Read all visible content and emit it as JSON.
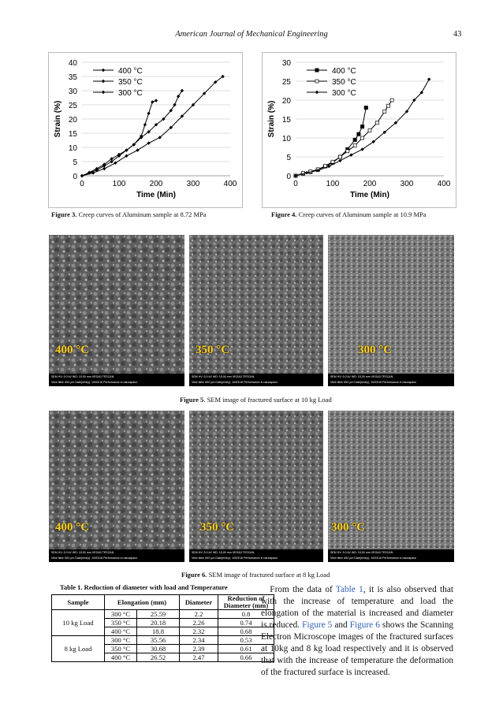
{
  "header": {
    "journal": "American Journal of Mechanical Engineering",
    "page_number": "43"
  },
  "figure3": {
    "caption_label": "Figure 3.",
    "caption_text": " Creep curves of Aluminum sample at 8.72 MPa",
    "chart_data": {
      "type": "line",
      "xlabel": "Time (Min)",
      "ylabel": "Strain (%)",
      "xlim": [
        0,
        400
      ],
      "ylim": [
        0,
        40
      ],
      "xticks": [
        0,
        100,
        200,
        300,
        400
      ],
      "yticks": [
        0,
        5,
        10,
        15,
        20,
        25,
        30,
        35,
        40
      ],
      "legend": "top-left",
      "series": [
        {
          "name": "400 °C",
          "x": [
            0,
            20,
            40,
            60,
            80,
            100,
            120,
            140,
            160,
            170,
            180,
            190,
            200
          ],
          "y": [
            0,
            1.2,
            2.5,
            4,
            6,
            7.5,
            9,
            11,
            14,
            18,
            22,
            26,
            26.5
          ]
        },
        {
          "name": "350 °C",
          "x": [
            0,
            20,
            40,
            60,
            80,
            100,
            120,
            140,
            160,
            180,
            200,
            220,
            240,
            250,
            260,
            270
          ],
          "y": [
            0,
            1,
            2,
            3.5,
            5,
            7,
            9,
            11,
            13.5,
            15.5,
            18,
            20,
            23,
            25,
            28,
            30
          ]
        },
        {
          "name": "300 °C",
          "x": [
            0,
            30,
            60,
            90,
            120,
            150,
            180,
            210,
            240,
            270,
            300,
            330,
            360,
            380
          ],
          "y": [
            0,
            1,
            2.5,
            4.5,
            7,
            9,
            11.5,
            13.5,
            17,
            21,
            25,
            29,
            33,
            35
          ]
        }
      ]
    }
  },
  "figure4": {
    "caption_label": "Figure 4.",
    "caption_text": " Creep curves of Aluminum sample at 10.9 MPa",
    "chart_data": {
      "type": "line",
      "xlabel": "Time (Min)",
      "ylabel": "Strain (%)",
      "xlim": [
        0,
        400
      ],
      "ylim": [
        0,
        30
      ],
      "xticks": [
        0,
        100,
        200,
        300,
        400
      ],
      "yticks": [
        0,
        5,
        10,
        15,
        20,
        25,
        30
      ],
      "legend": "top-left",
      "series": [
        {
          "name": "400 °C",
          "x": [
            0,
            20,
            40,
            60,
            80,
            100,
            120,
            140,
            160,
            170,
            180,
            190
          ],
          "y": [
            0,
            0.6,
            1.0,
            1.6,
            2.5,
            3.5,
            5,
            7,
            9.5,
            11,
            13,
            18
          ]
        },
        {
          "name": "350 °C",
          "x": [
            0,
            20,
            40,
            60,
            80,
            100,
            120,
            140,
            160,
            180,
            200,
            220,
            240,
            250,
            260
          ],
          "y": [
            0,
            0.7,
            1.1,
            1.7,
            2.6,
            3.7,
            5,
            6.5,
            8,
            10,
            12,
            14,
            17,
            18.5,
            20
          ]
        },
        {
          "name": "300 °C",
          "x": [
            0,
            30,
            60,
            90,
            120,
            150,
            180,
            210,
            240,
            270,
            300,
            320,
            340,
            360
          ],
          "y": [
            0,
            0.8,
            1.4,
            2.5,
            4,
            5.5,
            7,
            9,
            11.5,
            14,
            17,
            20,
            22,
            25.5
          ]
        }
      ]
    }
  },
  "figure5": {
    "caption_label": "Figure 5",
    "caption_text": ". SEM image of fractured surface at 10 kg Load",
    "images": [
      {
        "label": "400 °C"
      },
      {
        "label": "350 °C"
      },
      {
        "label": "300 °C"
      }
    ]
  },
  "figure6": {
    "caption_label": "Figure 6.",
    "caption_text": " SEM image of fractured surface at 8 kg Load",
    "images": [
      {
        "label": "400 °C"
      },
      {
        "label": "350 °C"
      },
      {
        "label": "300 °C"
      }
    ]
  },
  "sem_meta": {
    "row1": "SEM HV: 5.0 kV    WD: 15.00 mm                  VEGA3 TESCAN",
    "row2": "SEM MAG: 200 x    Det: SE    200 µm",
    "row3": "View field: 692 µm   Date(m/d/y): 10/03/16      Performance in nanospace"
  },
  "table1": {
    "caption": "Table 1. Reduction of diameter with load and Temperature",
    "headers": [
      "Sample",
      "Elongation (mm)",
      "Diameter",
      "Reduction of Diameter (mm)"
    ],
    "groups": [
      {
        "sample": "10 kg Load",
        "rows": [
          {
            "temp": "300 °C",
            "elongation": "25.59",
            "diameter": "2.2",
            "reduction": "0.8"
          },
          {
            "temp": "350 °C",
            "elongation": "20.18",
            "diameter": "2.26",
            "reduction": "0.74"
          },
          {
            "temp": "400 °C",
            "elongation": "18.8",
            "diameter": "2.32",
            "reduction": "0.68"
          }
        ]
      },
      {
        "sample": "8 kg Load",
        "rows": [
          {
            "temp": "300 °C",
            "elongation": "35.56",
            "diameter": "2.34",
            "reduction": "0.53"
          },
          {
            "temp": "350 °C",
            "elongation": "30.68",
            "diameter": "2.39",
            "reduction": "0.61"
          },
          {
            "temp": "400 °C",
            "elongation": "26.52",
            "diameter": "2.47",
            "reduction": "0.66"
          }
        ]
      }
    ]
  },
  "paragraph": {
    "p1": "From the data of ",
    "link1": "Table 1",
    "p2": ", it is also observed that with the increase of temperature and load the elongation of the material is increased and diameter is reduced. ",
    "link2": "Figure 5",
    "p3": " and ",
    "link3": "Figure 6",
    "p4": " shows the Scanning Electron Microscope images of the fractured surfaces at 10kg and 8 kg load respectively and it is observed that with the increase of temperature the deformation of the fractured surface is increased."
  }
}
